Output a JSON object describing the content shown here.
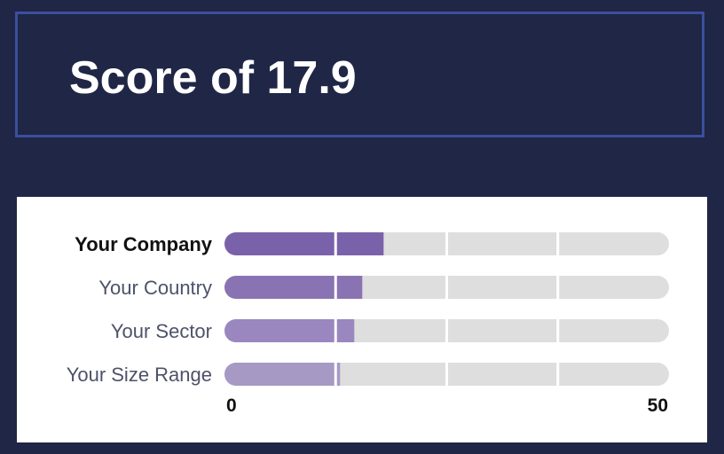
{
  "header": {
    "title": "Score of 17.9"
  },
  "chart_data": {
    "type": "bar",
    "orientation": "horizontal",
    "title": "",
    "xlabel": "",
    "ylabel": "",
    "xlim": [
      0,
      50
    ],
    "tick_labels": [
      "0",
      "50"
    ],
    "gridlines": [
      12.5,
      25,
      37.5
    ],
    "categories": [
      "Your Company",
      "Your Country",
      "Your Sector",
      "Your Size Range"
    ],
    "values": [
      17.9,
      15.5,
      14.6,
      13.0
    ],
    "highlight_index": 0,
    "colors": {
      "bars": [
        "#7a62aa",
        "#8a73b2",
        "#9a87bf",
        "#a699c4"
      ],
      "track": "#dedede",
      "label_dim": "#4d5269",
      "label_strong": "#111111",
      "tick": "#111111"
    }
  }
}
